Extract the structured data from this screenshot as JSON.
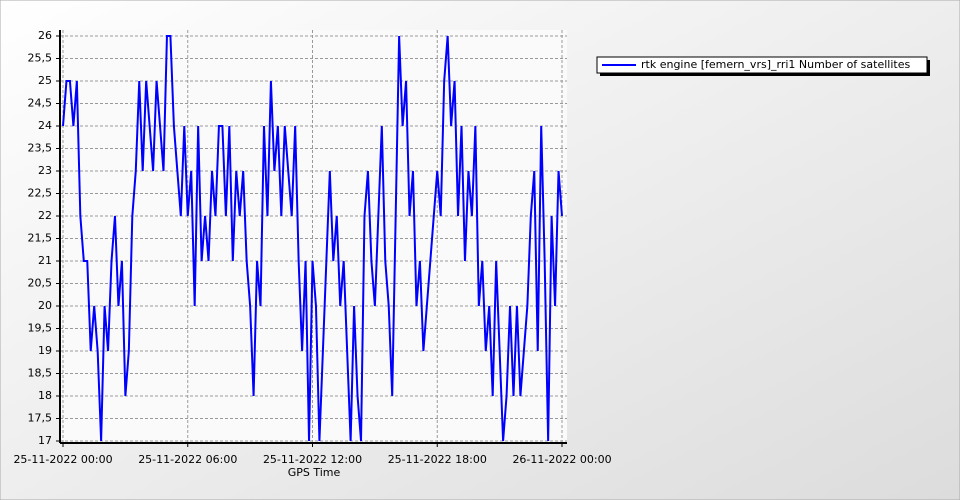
{
  "chart_data": {
    "type": "line",
    "xlabel": "GPS Time",
    "x": [
      "25-11-2022 00:00",
      "25-11-2022 00:10",
      "25-11-2022 00:20",
      "25-11-2022 00:30",
      "25-11-2022 00:40",
      "25-11-2022 00:50",
      "25-11-2022 01:00",
      "25-11-2022 01:10",
      "25-11-2022 01:20",
      "25-11-2022 01:30",
      "25-11-2022 01:40",
      "25-11-2022 01:50",
      "25-11-2022 02:00",
      "25-11-2022 02:10",
      "25-11-2022 02:20",
      "25-11-2022 02:30",
      "25-11-2022 02:40",
      "25-11-2022 02:50",
      "25-11-2022 03:00",
      "25-11-2022 03:10",
      "25-11-2022 03:20",
      "25-11-2022 03:30",
      "25-11-2022 03:40",
      "25-11-2022 03:50",
      "25-11-2022 04:00",
      "25-11-2022 04:10",
      "25-11-2022 04:20",
      "25-11-2022 04:30",
      "25-11-2022 04:40",
      "25-11-2022 04:50",
      "25-11-2022 05:00",
      "25-11-2022 05:10",
      "25-11-2022 05:20",
      "25-11-2022 05:30",
      "25-11-2022 05:40",
      "25-11-2022 05:50",
      "25-11-2022 06:00",
      "25-11-2022 06:10",
      "25-11-2022 06:20",
      "25-11-2022 06:30",
      "25-11-2022 06:40",
      "25-11-2022 06:50",
      "25-11-2022 07:00",
      "25-11-2022 07:10",
      "25-11-2022 07:20",
      "25-11-2022 07:30",
      "25-11-2022 07:40",
      "25-11-2022 07:50",
      "25-11-2022 08:00",
      "25-11-2022 08:10",
      "25-11-2022 08:20",
      "25-11-2022 08:30",
      "25-11-2022 08:40",
      "25-11-2022 08:50",
      "25-11-2022 09:00",
      "25-11-2022 09:10",
      "25-11-2022 09:20",
      "25-11-2022 09:30",
      "25-11-2022 09:40",
      "25-11-2022 09:50",
      "25-11-2022 10:00",
      "25-11-2022 10:10",
      "25-11-2022 10:20",
      "25-11-2022 10:30",
      "25-11-2022 10:40",
      "25-11-2022 10:50",
      "25-11-2022 11:00",
      "25-11-2022 11:10",
      "25-11-2022 11:20",
      "25-11-2022 11:30",
      "25-11-2022 11:40",
      "25-11-2022 11:50",
      "25-11-2022 12:00",
      "25-11-2022 12:10",
      "25-11-2022 12:20",
      "25-11-2022 12:30",
      "25-11-2022 12:40",
      "25-11-2022 12:50",
      "25-11-2022 13:00",
      "25-11-2022 13:10",
      "25-11-2022 13:20",
      "25-11-2022 13:30",
      "25-11-2022 13:40",
      "25-11-2022 13:50",
      "25-11-2022 14:00",
      "25-11-2022 14:10",
      "25-11-2022 14:20",
      "25-11-2022 14:30",
      "25-11-2022 14:40",
      "25-11-2022 14:50",
      "25-11-2022 15:00",
      "25-11-2022 15:10",
      "25-11-2022 15:20",
      "25-11-2022 15:30",
      "25-11-2022 15:40",
      "25-11-2022 15:50",
      "25-11-2022 16:00",
      "25-11-2022 16:10",
      "25-11-2022 16:20",
      "25-11-2022 16:30",
      "25-11-2022 16:40",
      "25-11-2022 16:50",
      "25-11-2022 17:00",
      "25-11-2022 17:10",
      "25-11-2022 17:20",
      "25-11-2022 17:30",
      "25-11-2022 17:40",
      "25-11-2022 17:50",
      "25-11-2022 18:00",
      "25-11-2022 18:10",
      "25-11-2022 18:20",
      "25-11-2022 18:30",
      "25-11-2022 18:40",
      "25-11-2022 18:50",
      "25-11-2022 19:00",
      "25-11-2022 19:10",
      "25-11-2022 19:20",
      "25-11-2022 19:30",
      "25-11-2022 19:40",
      "25-11-2022 19:50",
      "25-11-2022 20:00",
      "25-11-2022 20:10",
      "25-11-2022 20:20",
      "25-11-2022 20:30",
      "25-11-2022 20:40",
      "25-11-2022 20:50",
      "25-11-2022 21:00",
      "25-11-2022 21:10",
      "25-11-2022 21:20",
      "25-11-2022 21:30",
      "25-11-2022 21:40",
      "25-11-2022 21:50",
      "25-11-2022 22:00",
      "25-11-2022 22:10",
      "25-11-2022 22:20",
      "25-11-2022 22:30",
      "25-11-2022 22:40",
      "25-11-2022 22:50",
      "25-11-2022 23:00",
      "25-11-2022 23:10",
      "25-11-2022 23:20",
      "25-11-2022 23:30",
      "25-11-2022 23:40",
      "25-11-2022 23:50",
      "26-11-2022 00:00"
    ],
    "series": [
      {
        "name": "rtk engine [femern_vrs]_rri1 Number of satellites",
        "color": "#0000ff",
        "values": [
          24,
          25,
          25,
          24,
          25,
          22,
          21,
          21,
          19,
          20,
          19,
          17,
          20,
          19,
          21,
          22,
          20,
          21,
          18,
          19,
          22,
          23,
          25,
          23,
          25,
          24,
          23,
          25,
          24,
          23,
          26,
          26,
          24,
          23,
          22,
          24,
          22,
          23,
          20,
          24,
          21,
          22,
          21,
          23,
          22,
          24,
          24,
          22,
          24,
          21,
          23,
          22,
          23,
          21,
          20,
          18,
          21,
          20,
          24,
          22,
          25,
          23,
          24,
          22,
          24,
          23,
          22,
          24,
          21,
          19,
          21,
          17,
          21,
          20,
          17,
          19,
          21,
          23,
          21,
          22,
          20,
          21,
          19,
          17,
          20,
          18,
          17,
          22,
          23,
          21,
          20,
          22,
          24,
          21,
          20,
          18,
          22,
          26,
          24,
          25,
          22,
          23,
          20,
          21,
          19,
          20,
          21,
          22,
          23,
          22,
          25,
          26,
          24,
          25,
          22,
          24,
          21,
          23,
          22,
          24,
          20,
          21,
          19,
          20,
          18,
          21,
          19,
          17,
          18,
          20,
          18,
          20,
          18,
          19,
          20,
          22,
          23,
          19,
          24,
          21,
          17,
          22,
          20,
          23,
          22
        ]
      }
    ],
    "xlim": [
      "25-11-2022 00:00",
      "26-11-2022 00:00"
    ],
    "xticks": [
      "25-11-2022 00:00",
      "25-11-2022 06:00",
      "25-11-2022 12:00",
      "25-11-2022 18:00",
      "26-11-2022 00:00"
    ],
    "ylim": [
      17,
      26
    ],
    "yticks": [
      17,
      {
        "value": 17.5,
        "label": "17,5"
      },
      18,
      {
        "value": 18.5,
        "label": "18,5"
      },
      19,
      {
        "value": 19.5,
        "label": "19,5"
      },
      20,
      {
        "value": 20.5,
        "label": "20,5"
      },
      21,
      {
        "value": 21.5,
        "label": "21,5"
      },
      22,
      {
        "value": 22.5,
        "label": "22,5"
      },
      23,
      {
        "value": 23.5,
        "label": "23,5"
      },
      24,
      {
        "value": 24.5,
        "label": "24,5"
      },
      25,
      {
        "value": 25.5,
        "label": "25,5"
      },
      26
    ],
    "grid": true
  }
}
